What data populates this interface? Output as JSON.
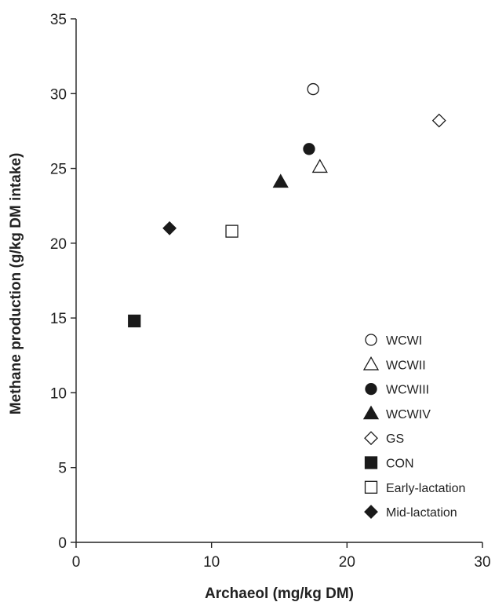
{
  "chart_data": {
    "type": "scatter",
    "xlabel": "Archaeol (mg/kg DM)",
    "ylabel": "Methane production (g/kg DM intake)",
    "xlim": [
      0,
      30
    ],
    "ylim": [
      0,
      35
    ],
    "x_ticks": [
      0,
      10,
      20,
      30
    ],
    "y_ticks": [
      0,
      5,
      10,
      15,
      20,
      25,
      30,
      35
    ],
    "grid": false,
    "legend_position": "lower-right",
    "series": [
      {
        "name": "WCWI",
        "marker": "circle-open",
        "x": [
          17.5
        ],
        "y": [
          30.3
        ]
      },
      {
        "name": "WCWII",
        "marker": "triangle-open",
        "x": [
          18.0
        ],
        "y": [
          25.1
        ]
      },
      {
        "name": "WCWIII",
        "marker": "circle-filled",
        "x": [
          17.2
        ],
        "y": [
          26.3
        ]
      },
      {
        "name": "WCWIV",
        "marker": "triangle-filled",
        "x": [
          15.1
        ],
        "y": [
          24.1
        ]
      },
      {
        "name": "GS",
        "marker": "diamond-open",
        "x": [
          26.8
        ],
        "y": [
          28.2
        ]
      },
      {
        "name": "CON",
        "marker": "square-filled",
        "x": [
          4.3
        ],
        "y": [
          14.8
        ]
      },
      {
        "name": "Early-lactation",
        "marker": "square-open",
        "x": [
          11.5
        ],
        "y": [
          20.8
        ]
      },
      {
        "name": "Mid-lactation",
        "marker": "diamond-filled",
        "x": [
          6.9
        ],
        "y": [
          21.0
        ]
      }
    ],
    "colors": {
      "marker": "#1a1a1a",
      "axis": "#222222",
      "background": "#ffffff"
    }
  }
}
